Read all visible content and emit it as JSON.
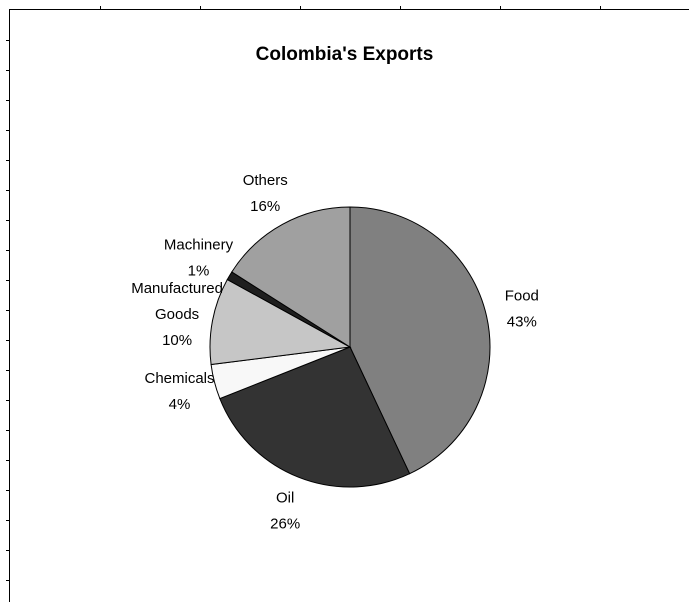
{
  "chart_data": {
    "type": "pie",
    "title": "Colombia's Exports",
    "start_angle_deg": 0,
    "direction": "clockwise",
    "slices": [
      {
        "label": [
          "Food"
        ],
        "percent_label": "43%",
        "value": 43,
        "color": "#808080"
      },
      {
        "label": [
          "Oil"
        ],
        "percent_label": "26%",
        "value": 26,
        "color": "#333333"
      },
      {
        "label": [
          "Chemicals"
        ],
        "percent_label": "4%",
        "value": 4,
        "color": "#f8f8f8"
      },
      {
        "label": [
          "Manufactured",
          "Goods"
        ],
        "percent_label": "10%",
        "value": 10,
        "color": "#c6c6c6"
      },
      {
        "label": [
          "Machinery"
        ],
        "percent_label": "1%",
        "value": 1,
        "color": "#1e1e1e"
      },
      {
        "label": [
          "Others"
        ],
        "percent_label": "16%",
        "value": 16,
        "color": "#a0a0a0"
      }
    ],
    "legend": "none",
    "outline_color": "#000000"
  }
}
